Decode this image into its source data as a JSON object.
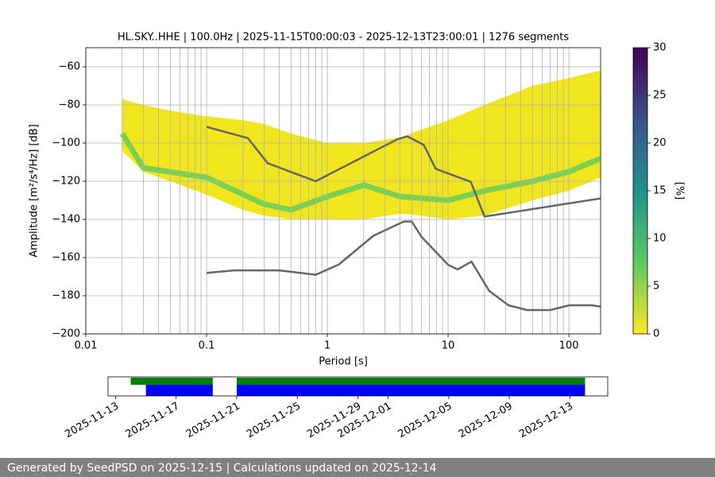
{
  "chart_data": [
    {
      "type": "line",
      "title": "HL.SKY..HHE | 100.0Hz | 2025-11-15T00:00:03 - 2025-12-13T23:00:01 | 1276 segments",
      "xlabel": "Period [s]",
      "ylabel": "Amplitude [m²/s⁴/Hz] [dB]",
      "xscale": "log",
      "grid": true,
      "minor_grid": true,
      "xlim": [
        0.01,
        183
      ],
      "xticks": [
        0.01,
        0.1,
        1,
        10,
        100
      ],
      "ylim": [
        -200,
        -50
      ],
      "yticks": [
        {
          "value": -200,
          "label": "−200"
        },
        {
          "value": -180,
          "label": "−180"
        },
        {
          "value": -160,
          "label": "−160"
        },
        {
          "value": -140,
          "label": "−140"
        },
        {
          "value": -120,
          "label": "−120"
        },
        {
          "value": -100,
          "label": "−100"
        },
        {
          "value": -80,
          "label": "−80"
        },
        {
          "value": -60,
          "label": "−60"
        }
      ],
      "band": {
        "color": "#f1e51d",
        "x": [
          0.02,
          0.03,
          0.05,
          0.1,
          0.2,
          0.3,
          0.5,
          1,
          2,
          4,
          6,
          10,
          20,
          50,
          100,
          183
        ],
        "high": [
          -77,
          -80,
          -83,
          -86,
          -88,
          -90,
          -95,
          -100,
          -100,
          -97,
          -93,
          -88,
          -80,
          -70,
          -66,
          -62
        ],
        "low": [
          -104,
          -115,
          -120,
          -127,
          -135,
          -138,
          -140,
          -140,
          -140,
          -137,
          -138,
          -140,
          -138,
          -130,
          -125,
          -118
        ]
      },
      "mode": {
        "color": "#7ad151",
        "x": [
          0.02,
          0.03,
          0.1,
          0.3,
          0.5,
          1,
          2,
          4,
          10,
          20,
          50,
          100,
          183
        ],
        "values": [
          -95,
          -113,
          -118,
          -132,
          -135,
          -128,
          -122,
          -128,
          -130,
          -125,
          -120,
          -115,
          -108
        ]
      },
      "series": [
        {
          "color": "#666666",
          "x": [
            0.1,
            0.22,
            0.32,
            0.8,
            3.8,
            4.6,
            6.3,
            7.9,
            15.4,
            20,
            183
          ],
          "values": [
            -91.5,
            -97.4,
            -110.5,
            -120,
            -98,
            -96.5,
            -101,
            -113.5,
            -120.3,
            -138.5,
            -129
          ]
        },
        {
          "color": "#666666",
          "x": [
            0.1,
            0.17,
            0.4,
            0.8,
            1.24,
            2.4,
            4.3,
            5,
            6,
            10,
            12,
            15.6,
            21.9,
            31.6,
            45,
            70,
            101,
            154,
            183
          ],
          "values": [
            -168,
            -166.7,
            -166.7,
            -169,
            -163.7,
            -148.6,
            -141.1,
            -141.1,
            -149,
            -163.8,
            -166.2,
            -162.1,
            -177.5,
            -185,
            -187.5,
            -187.5,
            -185,
            -185,
            -185.7
          ]
        }
      ]
    },
    {
      "type": "colorbar",
      "label": "[%]",
      "ylim": [
        0,
        30
      ],
      "yticks": [
        0,
        5,
        10,
        15,
        20,
        25,
        30
      ],
      "colormap": [
        "#fde725",
        "#5ec962",
        "#21918c",
        "#3b528b",
        "#440154"
      ]
    },
    {
      "type": "timeline",
      "xlim": [
        "2025-11-12T12:00",
        "2025-12-15T12:00"
      ],
      "xticks": [
        "2025-11-13",
        "2025-11-17",
        "2025-11-21",
        "2025-11-25",
        "2025-11-29",
        "2025-12-01",
        "2025-12-05",
        "2025-12-09",
        "2025-12-13"
      ],
      "rows": [
        {
          "color": "#008000",
          "segments": [
            [
              "2025-11-14",
              "2025-11-19T10:00"
            ],
            [
              "2025-11-21",
              "2025-12-14"
            ]
          ]
        },
        {
          "color": "#0000ff",
          "segments": [
            [
              "2025-11-15",
              "2025-11-19T10:00"
            ],
            [
              "2025-11-21",
              "2025-12-14"
            ]
          ]
        }
      ]
    }
  ],
  "footer": "Generated by SeedPSD on 2025-12-15 | Calculations updated on 2025-12-14"
}
